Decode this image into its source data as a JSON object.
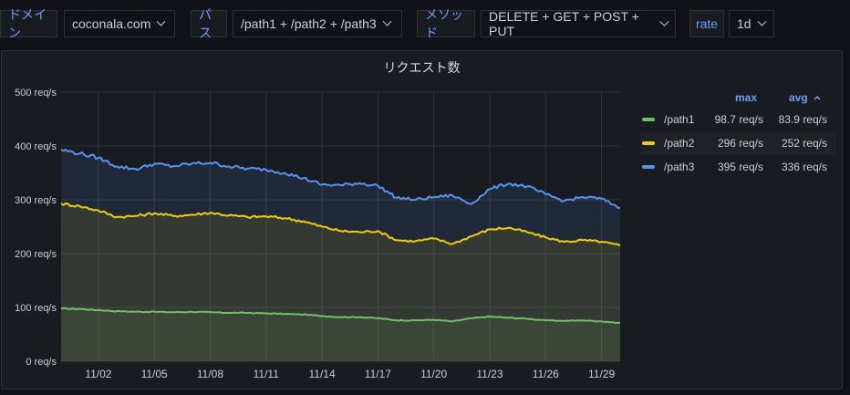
{
  "variables": [
    {
      "label": "ドメイン",
      "value": "coconala.com"
    },
    {
      "label": "パス",
      "value": "/path1 + /path2 + /path3"
    },
    {
      "label": "メソッド",
      "value": "DELETE + GET + POST + PUT"
    },
    {
      "label": "rate",
      "value": "1d"
    }
  ],
  "panel": {
    "title": "リクエスト数",
    "legend": {
      "max_header": "max",
      "avg_header": "avg",
      "sort_indicator": "caret-up-icon",
      "items": [
        {
          "name": "/path1",
          "max": "98.7 req/s",
          "avg": "83.9 req/s",
          "color": "#73bf69"
        },
        {
          "name": "/path2",
          "max": "296 req/s",
          "avg": "252 req/s",
          "color": "#f2cc0c"
        },
        {
          "name": "/path3",
          "max": "395 req/s",
          "avg": "336 req/s",
          "color": "#5794f2"
        }
      ]
    }
  },
  "chart_data": {
    "type": "line",
    "x": [
      "10/31",
      "11/01",
      "11/02",
      "11/03",
      "11/04",
      "11/05",
      "11/06",
      "11/07",
      "11/08",
      "11/09",
      "11/10",
      "11/11",
      "11/12",
      "11/13",
      "11/14",
      "11/15",
      "11/16",
      "11/17",
      "11/18",
      "11/19",
      "11/20",
      "11/21",
      "11/22",
      "11/23",
      "11/24",
      "11/25",
      "11/26",
      "11/27",
      "11/28",
      "11/29",
      "11/30"
    ],
    "x_tick_labels": [
      "11/02",
      "11/05",
      "11/08",
      "11/11",
      "11/14",
      "11/17",
      "11/20",
      "11/23",
      "11/26",
      "11/29"
    ],
    "y_tick_labels": [
      "0 req/s",
      "100 req/s",
      "200 req/s",
      "300 req/s",
      "400 req/s",
      "500 req/s"
    ],
    "ylim": [
      0,
      500
    ],
    "grid": true,
    "legend_placement": "right",
    "series": [
      {
        "name": "/path1",
        "color": "#73bf69",
        "values": [
          98,
          97,
          95,
          93,
          92,
          92,
          91,
          92,
          91,
          90,
          90,
          89,
          88,
          87,
          84,
          82,
          82,
          80,
          76,
          76,
          77,
          74,
          80,
          83,
          81,
          79,
          76,
          75,
          76,
          74,
          71
        ]
      },
      {
        "name": "/path2",
        "color": "#f2cc0c",
        "values": [
          293,
          288,
          280,
          268,
          270,
          275,
          270,
          272,
          276,
          271,
          268,
          269,
          266,
          260,
          250,
          242,
          240,
          242,
          225,
          223,
          228,
          218,
          232,
          245,
          248,
          240,
          230,
          222,
          225,
          222,
          215
        ]
      },
      {
        "name": "/path3",
        "color": "#5794f2",
        "values": [
          393,
          386,
          378,
          362,
          357,
          367,
          362,
          367,
          369,
          362,
          358,
          356,
          350,
          340,
          328,
          327,
          331,
          326,
          304,
          300,
          305,
          308,
          292,
          320,
          330,
          325,
          310,
          298,
          305,
          302,
          285
        ]
      }
    ]
  }
}
